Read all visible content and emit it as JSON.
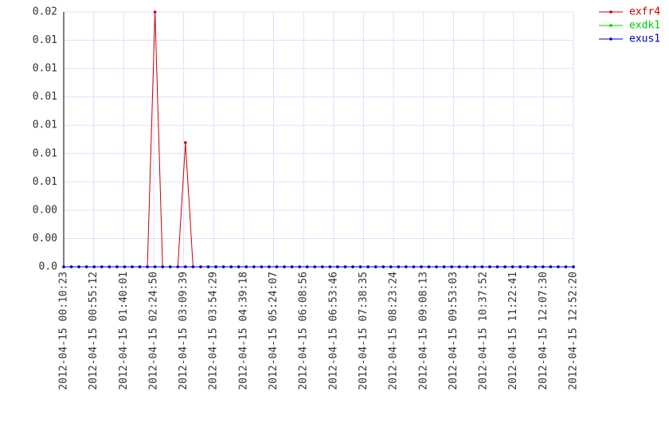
{
  "chart_data": {
    "type": "line",
    "xlim": [
      "2012-04-15 00:10:23",
      "2012-04-15 12:52:20"
    ],
    "xticks": [
      "2012-04-15 00:10:23",
      "2012-04-15 00:55:12",
      "2012-04-15 01:40:01",
      "2012-04-15 02:24:50",
      "2012-04-15 03:09:39",
      "2012-04-15 03:54:29",
      "2012-04-15 04:39:18",
      "2012-04-15 05:24:07",
      "2012-04-15 06:08:56",
      "2012-04-15 06:53:46",
      "2012-04-15 07:38:35",
      "2012-04-15 08:23:24",
      "2012-04-15 09:08:13",
      "2012-04-15 09:53:03",
      "2012-04-15 10:37:52",
      "2012-04-15 11:22:41",
      "2012-04-15 12:07:30",
      "2012-04-15 12:52:20"
    ],
    "ylim": [
      0,
      0.02
    ],
    "yticks": [
      {
        "value": 0,
        "label": "0.0"
      },
      {
        "value": 0.00222,
        "label": "0.00"
      },
      {
        "value": 0.00444,
        "label": "0.00"
      },
      {
        "value": 0.00667,
        "label": "0.01"
      },
      {
        "value": 0.00889,
        "label": "0.01"
      },
      {
        "value": 0.01111,
        "label": "0.01"
      },
      {
        "value": 0.01333,
        "label": "0.01"
      },
      {
        "value": 0.01556,
        "label": "0.01"
      },
      {
        "value": 0.01778,
        "label": "0.01"
      },
      {
        "value": 0.02,
        "label": "0.02"
      }
    ],
    "grid": true,
    "legend": "right",
    "series": [
      {
        "name": "exfr4",
        "color": "#cc0000",
        "values": [
          0,
          0,
          0,
          0,
          0,
          0,
          0,
          0,
          0,
          0,
          0,
          0,
          0.02,
          0,
          0,
          0,
          0.00975,
          0,
          0,
          0,
          0,
          0,
          0,
          0,
          0,
          0,
          0,
          0,
          0,
          0,
          0,
          0,
          0,
          0,
          0,
          0,
          0,
          0,
          0,
          0,
          0,
          0,
          0,
          0,
          0,
          0,
          0,
          0,
          0,
          0,
          0,
          0,
          0,
          0,
          0,
          0,
          0,
          0,
          0,
          0,
          0,
          0,
          0,
          0,
          0,
          0,
          0,
          0
        ]
      },
      {
        "name": "exdk1",
        "color": "#00cc00",
        "values": [
          0,
          0,
          0,
          0,
          0,
          0,
          0,
          0,
          0,
          0,
          0,
          0,
          0,
          0,
          0,
          0,
          0,
          0,
          0,
          0,
          0,
          0,
          0,
          0,
          0,
          0,
          0,
          0,
          0,
          0,
          0,
          0,
          0,
          0,
          0,
          0,
          0,
          0,
          0,
          0,
          0,
          0,
          0,
          0,
          0,
          0,
          0,
          0,
          0,
          0,
          0,
          0,
          0,
          0,
          0,
          0,
          0,
          0,
          0,
          0,
          0,
          0,
          0,
          0,
          0,
          0,
          0,
          0
        ]
      },
      {
        "name": "exus1",
        "color": "#0000cc",
        "values": [
          0,
          0,
          0,
          0,
          0,
          0,
          0,
          0,
          0,
          0,
          0,
          0,
          0,
          0,
          0,
          0,
          0,
          0,
          0,
          0,
          0,
          0,
          0,
          0,
          0,
          0,
          0,
          0,
          0,
          0,
          0,
          0,
          0,
          0,
          0,
          0,
          0,
          0,
          0,
          0,
          0,
          0,
          0,
          0,
          0,
          0,
          0,
          0,
          0,
          0,
          0,
          0,
          0,
          0,
          0,
          0,
          0,
          0,
          0,
          0,
          0,
          0,
          0,
          0,
          0,
          0,
          0,
          0
        ]
      }
    ]
  }
}
